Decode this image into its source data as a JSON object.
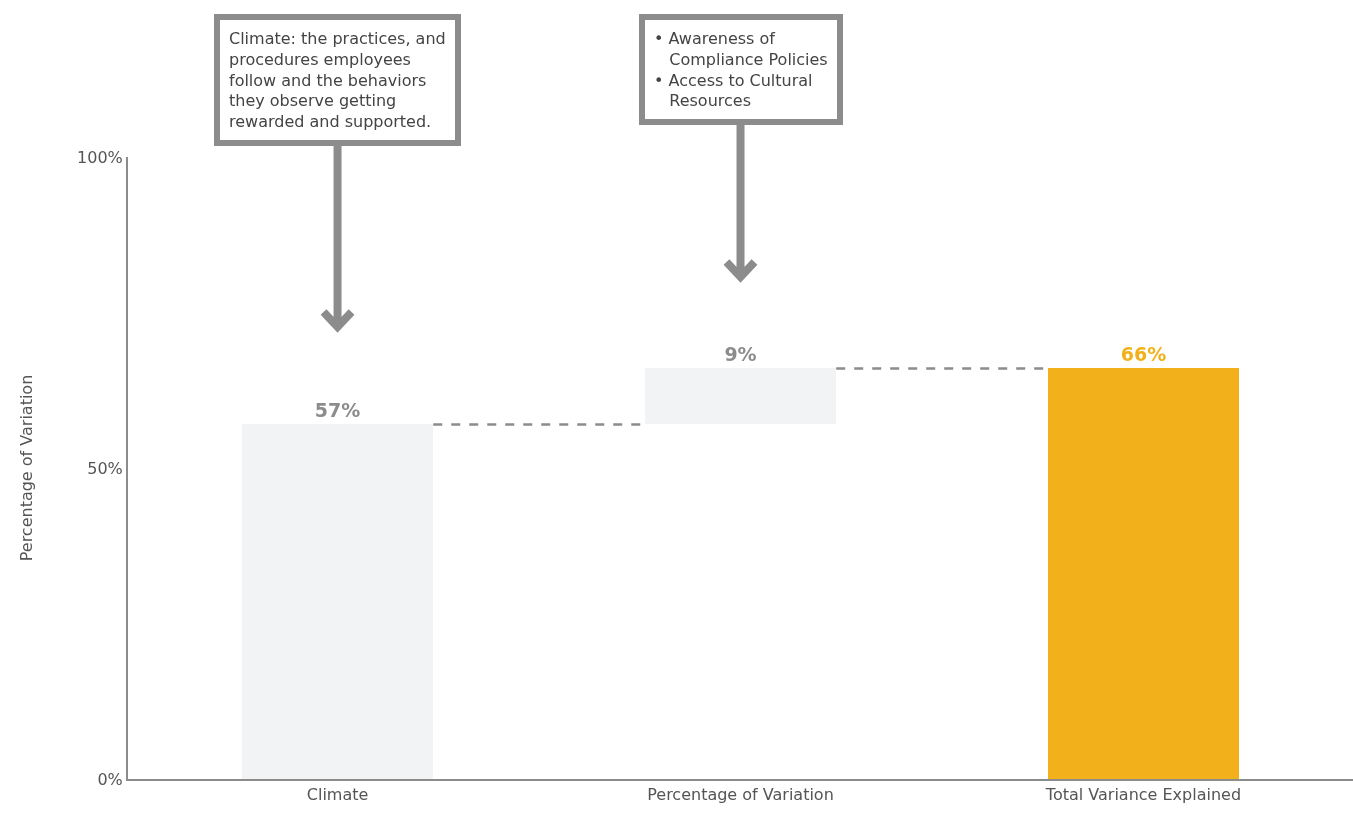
{
  "chart_data": {
    "type": "bar",
    "ylabel": "Percentage of Variation",
    "categories": [
      "Climate",
      "Percentage of Variation",
      "Total Variance Explained"
    ],
    "values": [
      57,
      9,
      66
    ],
    "base": [
      0,
      57,
      0
    ],
    "colors": [
      "#f2f3f5",
      "#f2f3f5",
      "#f2b11a"
    ],
    "value_labels": [
      "57%",
      "9%",
      "66%"
    ],
    "ylim": [
      0,
      100
    ],
    "yticks": [
      {
        "value": 0,
        "label": "0%"
      },
      {
        "value": 50,
        "label": "50%"
      },
      {
        "value": 100,
        "label": "100%"
      }
    ],
    "grid": false,
    "legend": false,
    "ref_lines": [
      {
        "axis": "y",
        "value": 57,
        "color": "#8c8c8c",
        "line_style": "dashed"
      },
      {
        "axis": "y",
        "value": 66,
        "color": "#8c8c8c",
        "line_style": "dashed"
      }
    ],
    "annotations": [
      "Climate: the practices, and\nprocedures employees\nfollow and the behaviors\nthey observe getting\nrewarded and supported.",
      "• Awareness of\n   Compliance Policies\n• Access to Cultural\n   Resources"
    ]
  }
}
